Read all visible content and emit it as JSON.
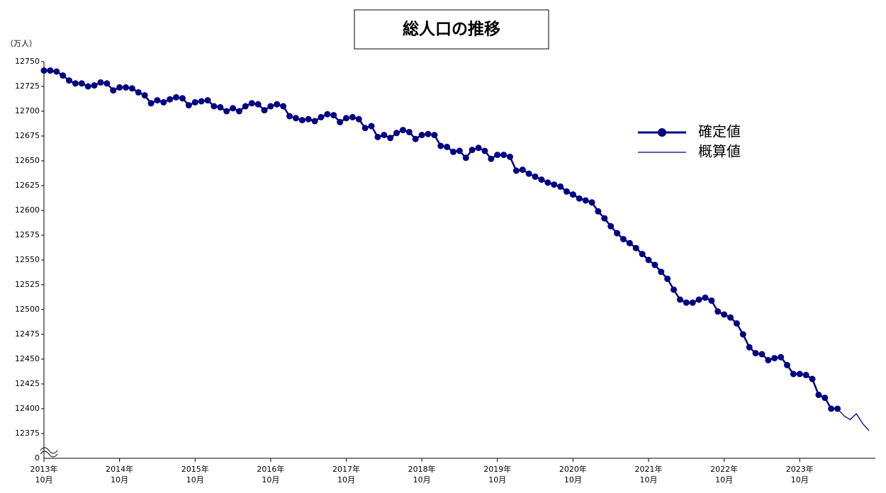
{
  "chart_data": {
    "type": "line",
    "title": "総人口の推移",
    "y_unit": "（万人）",
    "x": [
      "2013-10",
      "2013-11",
      "2013-12",
      "2014-01",
      "2014-02",
      "2014-03",
      "2014-04",
      "2014-05",
      "2014-06",
      "2014-07",
      "2014-08",
      "2014-09",
      "2014-10",
      "2014-11",
      "2014-12",
      "2015-01",
      "2015-02",
      "2015-03",
      "2015-04",
      "2015-05",
      "2015-06",
      "2015-07",
      "2015-08",
      "2015-09",
      "2015-10",
      "2015-11",
      "2015-12",
      "2016-01",
      "2016-02",
      "2016-03",
      "2016-04",
      "2016-05",
      "2016-06",
      "2016-07",
      "2016-08",
      "2016-09",
      "2016-10",
      "2016-11",
      "2016-12",
      "2017-01",
      "2017-02",
      "2017-03",
      "2017-04",
      "2017-05",
      "2017-06",
      "2017-07",
      "2017-08",
      "2017-09",
      "2017-10",
      "2017-11",
      "2017-12",
      "2018-01",
      "2018-02",
      "2018-03",
      "2018-04",
      "2018-05",
      "2018-06",
      "2018-07",
      "2018-08",
      "2018-09",
      "2018-10",
      "2018-11",
      "2018-12",
      "2019-01",
      "2019-02",
      "2019-03",
      "2019-04",
      "2019-05",
      "2019-06",
      "2019-07",
      "2019-08",
      "2019-09",
      "2019-10",
      "2019-11",
      "2019-12",
      "2020-01",
      "2020-02",
      "2020-03",
      "2020-04",
      "2020-05",
      "2020-06",
      "2020-07",
      "2020-08",
      "2020-09",
      "2020-10",
      "2020-11",
      "2020-12",
      "2021-01",
      "2021-02",
      "2021-03",
      "2021-04",
      "2021-05",
      "2021-06",
      "2021-07",
      "2021-08",
      "2021-09",
      "2021-10",
      "2021-11",
      "2021-12",
      "2022-01",
      "2022-02",
      "2022-03",
      "2022-04",
      "2022-05",
      "2022-06",
      "2022-07",
      "2022-08",
      "2022-09",
      "2022-10",
      "2022-11",
      "2022-12",
      "2023-01",
      "2023-02",
      "2023-03",
      "2023-04",
      "2023-05",
      "2023-06",
      "2023-07",
      "2023-08",
      "2023-09",
      "2023-10",
      "2023-11",
      "2023-12",
      "2024-01",
      "2024-02",
      "2024-03",
      "2024-04",
      "2024-05",
      "2024-06",
      "2024-07",
      "2024-08",
      "2024-09"
    ],
    "series": [
      {
        "name": "確定値",
        "color": "#000080",
        "markers": true,
        "values": [
          12741,
          12741,
          12740,
          12736,
          12731,
          12728,
          12728,
          12725,
          12726,
          12729,
          12728,
          12721,
          12724,
          12724,
          12723,
          12719,
          12716,
          12708,
          12711,
          12709,
          12712,
          12714,
          12713,
          12706,
          12709,
          12710,
          12711,
          12705,
          12704,
          12700,
          12703,
          12700,
          12705,
          12708,
          12707,
          12701,
          12705,
          12707,
          12705,
          12695,
          12693,
          12691,
          12692,
          12690,
          12694,
          12697,
          12696,
          12689,
          12693,
          12694,
          12692,
          12683,
          12685,
          12674,
          12676,
          12673,
          12678,
          12681,
          12679,
          12672,
          12676,
          12677,
          12676,
          12665,
          12664,
          12659,
          12660,
          12653,
          12661,
          12663,
          12660,
          12652,
          12656,
          12656,
          12654,
          12640,
          12641,
          12637,
          12634,
          12631,
          12628,
          12626,
          12624,
          12619,
          12616,
          12612,
          12610,
          12608,
          12599,
          12592,
          12584,
          12577,
          12571,
          12567,
          12562,
          12556,
          12550,
          12545,
          12538,
          12531,
          12520,
          12510,
          12507,
          12507,
          12510,
          12512,
          12509,
          12498,
          12495,
          12492,
          12486,
          12475,
          12462,
          12456,
          12455,
          12449,
          12451,
          12452,
          12444,
          12435,
          12435,
          12434,
          12430,
          12414,
          12411,
          12400,
          12400,
          null,
          null,
          null,
          null,
          null
        ]
      },
      {
        "name": "概算値",
        "color": "#000080",
        "markers": false,
        "values": [
          null,
          null,
          null,
          null,
          null,
          null,
          null,
          null,
          null,
          null,
          null,
          null,
          null,
          null,
          null,
          null,
          null,
          null,
          null,
          null,
          null,
          null,
          null,
          null,
          null,
          null,
          null,
          null,
          null,
          null,
          null,
          null,
          null,
          null,
          null,
          null,
          null,
          null,
          null,
          null,
          null,
          null,
          null,
          null,
          null,
          null,
          null,
          null,
          null,
          null,
          null,
          null,
          null,
          null,
          null,
          null,
          null,
          null,
          null,
          null,
          null,
          null,
          null,
          null,
          null,
          null,
          null,
          null,
          null,
          null,
          null,
          null,
          null,
          null,
          null,
          null,
          null,
          null,
          null,
          null,
          null,
          null,
          null,
          null,
          null,
          null,
          null,
          null,
          null,
          null,
          null,
          null,
          null,
          null,
          null,
          null,
          null,
          null,
          null,
          null,
          null,
          null,
          null,
          null,
          null,
          null,
          null,
          null,
          null,
          null,
          null,
          null,
          null,
          null,
          null,
          null,
          null,
          null,
          null,
          null,
          null,
          null,
          null,
          null,
          null,
          null,
          12400,
          12393,
          12389,
          12395,
          12385,
          12378
        ]
      }
    ],
    "ylim": [
      12350,
      12750
    ],
    "yticks": [
      12375,
      12400,
      12425,
      12450,
      12475,
      12500,
      12525,
      12550,
      12575,
      12600,
      12625,
      12650,
      12675,
      12700,
      12725,
      12750
    ],
    "ybreak_label": "0",
    "xticks": [
      {
        "value": "2013-10",
        "year": "2013年",
        "month": "10月"
      },
      {
        "value": "2014-10",
        "year": "2014年",
        "month": "10月"
      },
      {
        "value": "2015-10",
        "year": "2015年",
        "month": "10月"
      },
      {
        "value": "2016-10",
        "year": "2016年",
        "month": "10月"
      },
      {
        "value": "2017-10",
        "year": "2017年",
        "month": "10月"
      },
      {
        "value": "2018-10",
        "year": "2018年",
        "month": "10月"
      },
      {
        "value": "2019-10",
        "year": "2019年",
        "month": "10月"
      },
      {
        "value": "2020-10",
        "year": "2020年",
        "month": "10月"
      },
      {
        "value": "2021-10",
        "year": "2021年",
        "month": "10月"
      },
      {
        "value": "2022-10",
        "year": "2022年",
        "month": "10月"
      },
      {
        "value": "2023-10",
        "year": "2023年",
        "month": "10月"
      }
    ],
    "legend": "upper-right",
    "grid": false
  }
}
